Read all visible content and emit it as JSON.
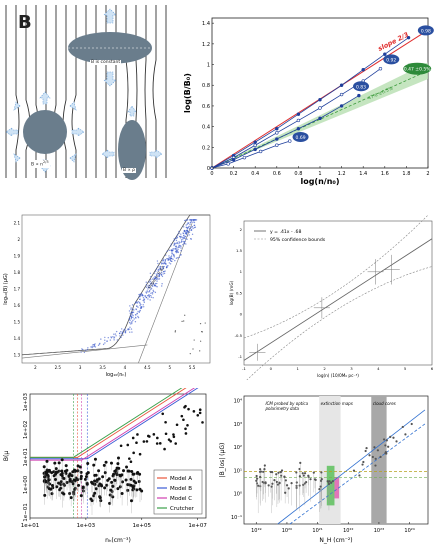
{
  "schematic": {
    "big_label": "B",
    "label_constant": "B is constant",
    "label_n23": "B ∝ n",
    "exp_n23": "2/3",
    "label_rho": "B ∝ ρ"
  },
  "chart_data": [
    {
      "type": "line",
      "xlabel": "log(n/n₀)",
      "ylabel": "log(B/B₀)",
      "xticks": [
        "0",
        "0.2",
        "0.4",
        "0.6",
        "0.8",
        "1",
        "1.2",
        "1.4",
        "1.6",
        "1.8",
        "2"
      ],
      "yticks": [
        "0",
        "0.2",
        "0.4",
        "0.6",
        "0.8",
        "1",
        "1.2",
        "1.4"
      ],
      "xlim": [
        0,
        2
      ],
      "ylim": [
        0,
        1.45
      ],
      "slope_label": "slope 2/3",
      "band_label": "47% ±0.5%",
      "series": [
        {
          "name": "0.98",
          "color": "#1f3f9c",
          "x": [
            0,
            0.2,
            0.4,
            0.6,
            0.8,
            1.0,
            1.2,
            1.4,
            1.6,
            1.82
          ],
          "y": [
            0,
            0.12,
            0.25,
            0.38,
            0.52,
            0.66,
            0.8,
            0.95,
            1.1,
            1.26
          ]
        },
        {
          "name": "0.92",
          "color": "#1f3f9c",
          "x": [
            0,
            0.2,
            0.4,
            0.6,
            0.8,
            1.0,
            1.2,
            1.4,
            1.56
          ],
          "y": [
            0,
            0.1,
            0.22,
            0.34,
            0.46,
            0.58,
            0.71,
            0.84,
            0.96
          ]
        },
        {
          "name": "0.83",
          "color": "#1f3f9c",
          "x": [
            0,
            0.2,
            0.4,
            0.6,
            0.8,
            1.0,
            1.2,
            1.36
          ],
          "y": [
            0,
            0.08,
            0.18,
            0.28,
            0.38,
            0.48,
            0.6,
            0.7
          ]
        },
        {
          "name": "0.69",
          "color": "#1f3f9c",
          "x": [
            0,
            0.15,
            0.3,
            0.45,
            0.6,
            0.72
          ],
          "y": [
            0,
            0.04,
            0.1,
            0.16,
            0.22,
            0.26
          ]
        }
      ],
      "oval_labels": [
        "0.98",
        "0.92",
        "0.83",
        "0.69",
        "0.47 ±0.5%"
      ]
    },
    {
      "type": "scatter",
      "xlabel": "log₁₀(nₕ)",
      "ylabel": "log₁₀(B) (μG)",
      "xticks": [
        "2",
        "2.5",
        "3",
        "3.5",
        "4",
        "4.5",
        "5",
        "5.5"
      ],
      "yticks": [
        "1.3",
        "1.4",
        "1.5",
        "1.6",
        "1.7",
        "1.8",
        "1.9",
        "2",
        "2.1"
      ],
      "xlim": [
        1.7,
        5.9
      ],
      "ylim": [
        1.25,
        2.15
      ],
      "fit_label": "slope = 0.67"
    },
    {
      "type": "line",
      "xlabel": "log(n) (10/0M₀ pc⁻³)",
      "ylabel": "log(B) (mG)",
      "xticks": [
        "-1",
        "0",
        "1",
        "2",
        "3",
        "4",
        "5",
        "6"
      ],
      "yticks": [
        "-1",
        "-0.5",
        "0",
        "0.5",
        "1",
        "1.5",
        "2"
      ],
      "xlim": [
        -1,
        6
      ],
      "ylim": [
        -1.2,
        2.2
      ],
      "legend": [
        "y = .41x - .68",
        "95% confidence bounds"
      ],
      "points": [
        {
          "x": -0.5,
          "y": -0.9,
          "e": 0.2
        },
        {
          "x": 1.9,
          "y": 0.15,
          "e": 0.25
        },
        {
          "x": 3.9,
          "y": 1.0,
          "e": 0.3
        },
        {
          "x": 4.5,
          "y": 1.05,
          "e": 0.35
        }
      ]
    },
    {
      "type": "scatter",
      "xlabel": "nₕ(cm⁻³)",
      "ylabel": "B(μ",
      "xticks": [
        "1e+01",
        "1e+03",
        "1e+05",
        "1e+07"
      ],
      "yticks": [
        "1e−01",
        "1e+00",
        "1e+01",
        "1e+02",
        "1e+03"
      ],
      "xlim": [
        1,
        7.3
      ],
      "ylim": [
        -1.2,
        3.3
      ],
      "legend": [
        {
          "name": "Model A",
          "color": "#e8553a"
        },
        {
          "name": "Model B",
          "color": "#3b5bd6"
        },
        {
          "name": "Model C",
          "color": "#d040b0"
        },
        {
          "name": "Crutcher",
          "color": "#3aa04a"
        }
      ]
    },
    {
      "type": "scatter",
      "xlabel": "N_H (cm⁻²)",
      "ylabel": "|B_los| (μG)",
      "xticks": [
        "10¹⁹",
        "10²⁰",
        "10²¹",
        "10²²",
        "10²³",
        "10²⁴"
      ],
      "yticks": [
        "10⁻¹",
        "10⁰",
        "10¹",
        "10²",
        "10³",
        "10⁴"
      ],
      "xlim": [
        18.6,
        24.6
      ],
      "ylim": [
        -1.3,
        4.2
      ],
      "region_labels": [
        "ICM probed by optical polarimetry data",
        "extinction maps",
        "cloud cores"
      ]
    }
  ]
}
